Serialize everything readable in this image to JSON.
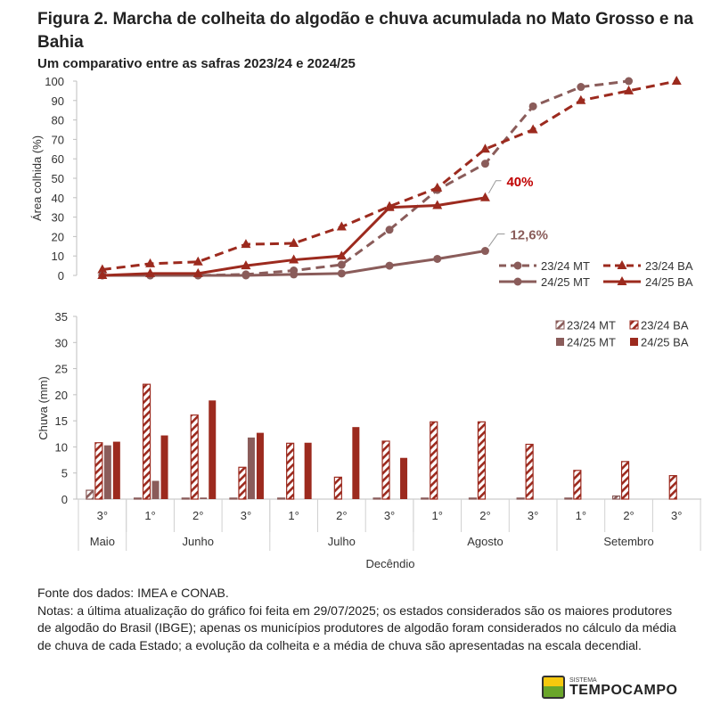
{
  "header": {
    "title": "Figura 2. Marcha de colheita do algodão e chuva acumulada no Mato Grosso e na Bahia",
    "subtitle": "Um comparativo entre as safras 2023/24 e 2024/25"
  },
  "colors": {
    "mt": "#8a5c5a",
    "ba": "#9c2a1e",
    "label_ba": "#c00000",
    "label_mt": "#8a5c5a"
  },
  "chart_data": [
    {
      "type": "line",
      "title": "",
      "ylabel": "Área colhida (%)",
      "xlabel": "",
      "ylim": [
        0,
        100
      ],
      "yticks": [
        0,
        10,
        20,
        30,
        40,
        50,
        60,
        70,
        80,
        90,
        100
      ],
      "categories": [
        "Maio 3°",
        "Junho 1°",
        "Junho 2°",
        "Junho 3°",
        "Julho 1°",
        "Julho 2°",
        "Julho 3°",
        "Agosto 1°",
        "Agosto 2°",
        "Agosto 3°",
        "Setembro 1°",
        "Setembro 2°",
        "Setembro 3°"
      ],
      "legend_position": "bottom-right",
      "series": [
        {
          "name": "23/24 MT",
          "style": "dashed",
          "marker": "circle",
          "color": "#8a5c5a",
          "values": [
            0,
            0,
            0,
            0.5,
            2.5,
            5.5,
            23.5,
            44,
            57.5,
            87,
            97,
            100,
            null
          ]
        },
        {
          "name": "23/24 BA",
          "style": "dashed",
          "marker": "triangle",
          "color": "#9c2a1e",
          "values": [
            3,
            6,
            7,
            16,
            16.5,
            25,
            35.5,
            45,
            65,
            75,
            90,
            95,
            100
          ]
        },
        {
          "name": "24/25 MT",
          "style": "solid",
          "marker": "circle",
          "color": "#8a5c5a",
          "values": [
            0,
            0,
            0,
            0,
            0.5,
            1,
            5,
            8.5,
            12.6,
            null,
            null,
            null,
            null
          ]
        },
        {
          "name": "24/25 BA",
          "style": "solid",
          "marker": "triangle",
          "color": "#9c2a1e",
          "values": [
            0,
            1,
            1,
            5,
            8,
            10,
            35,
            36,
            40,
            null,
            null,
            null,
            null
          ]
        }
      ],
      "annotations": [
        {
          "text": "40%",
          "series": "24/25 BA",
          "category": "Agosto 2°"
        },
        {
          "text": "12,6%",
          "series": "24/25 MT",
          "category": "Agosto 2°"
        }
      ]
    },
    {
      "type": "bar",
      "title": "",
      "ylabel": "Chuva (mm)",
      "xlabel": "Decêndio",
      "ylim": [
        0,
        35
      ],
      "yticks": [
        0,
        5,
        10,
        15,
        20,
        25,
        30,
        35
      ],
      "decendios": [
        "3°",
        "1°",
        "2°",
        "3°",
        "1°",
        "2°",
        "3°",
        "1°",
        "2°",
        "3°",
        "1°",
        "2°",
        "3°"
      ],
      "months": [
        {
          "label": "Maio",
          "span": 1
        },
        {
          "label": "Junho",
          "span": 3
        },
        {
          "label": "Julho",
          "span": 3
        },
        {
          "label": "Agosto",
          "span": 3
        },
        {
          "label": "Setembro",
          "span": 3
        }
      ],
      "legend_position": "top-right",
      "series": [
        {
          "name": "23/24 MT",
          "fill": "hatched",
          "color": "#8a5c5a",
          "values": [
            1.7,
            0.2,
            0.2,
            0.2,
            0.2,
            0,
            0.2,
            0.2,
            0.2,
            0.2,
            0.2,
            0.6,
            0
          ]
        },
        {
          "name": "23/24 BA",
          "fill": "hatched",
          "color": "#9c2a1e",
          "values": [
            10.8,
            22,
            16.1,
            6.1,
            10.7,
            4.2,
            11.1,
            14.8,
            14.8,
            10.5,
            5.5,
            7.2,
            4.5
          ]
        },
        {
          "name": "24/25 MT",
          "fill": "solid",
          "color": "#8a5c5a",
          "values": [
            10.3,
            3.5,
            0.3,
            11.8,
            0,
            0,
            0,
            null,
            null,
            null,
            null,
            null,
            null
          ]
        },
        {
          "name": "24/25 BA",
          "fill": "solid",
          "color": "#9c2a1e",
          "values": [
            11,
            12.2,
            18.9,
            12.7,
            10.8,
            13.8,
            7.9,
            null,
            null,
            null,
            null,
            null,
            null
          ]
        }
      ]
    }
  ],
  "notes": {
    "source": "Fonte dos dados: IMEA e CONAB.",
    "text": "Notas: a última atualização do gráfico foi feita em 29/07/2025; os estados considerados são os maiores produtores de algodão do Brasil (IBGE); apenas os municípios produtores de algodão foram considerados no cálculo da média de chuva de cada Estado; a evolução da colheita e a média de chuva são apresentadas na escala decendial."
  },
  "logo": {
    "small": "SISTEMA",
    "big": "TEMPOCAMPO"
  }
}
